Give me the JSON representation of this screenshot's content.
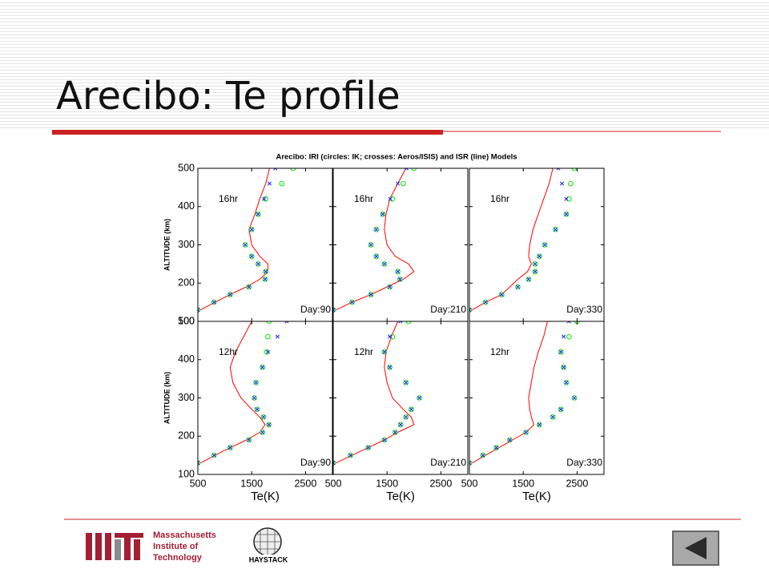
{
  "slide": {
    "title": "Arecibo: Te profile"
  },
  "figure": {
    "title": "Arecibo: IRI (circles: IK; crosses: Aeros/ISIS) and ISR (line) Models"
  },
  "footer": {
    "logo_lines": [
      "Massachusetts",
      "Institute of",
      "Technology"
    ],
    "haystack": "HAYSTACK"
  },
  "chart_data": [
    {
      "type": "line",
      "hour": "16hr",
      "day": "Day:90",
      "ylabel": "ALTITUDE (km)",
      "ytick_labels": true,
      "xtick_labels": false,
      "xlim": [
        500,
        3000
      ],
      "xticks": [
        500,
        1500,
        2500
      ],
      "ylim": [
        100,
        500
      ],
      "yticks": [
        100,
        200,
        300,
        400,
        500
      ],
      "altitude": [
        130,
        150,
        170,
        190,
        210,
        230,
        250,
        270,
        300,
        340,
        380,
        420,
        460,
        500
      ],
      "series": [
        {
          "color": "#ff0000",
          "values": [
            550,
            820,
            1100,
            1400,
            1650,
            1800,
            1800,
            1650,
            1500,
            1450,
            1560,
            1650,
            1760,
            1830
          ]
        },
        {
          "color": "#22ee22",
          "marker": "circle",
          "values": [
            500,
            800,
            1100,
            1450,
            1750,
            1760,
            1620,
            1500,
            1380,
            1500,
            1620,
            1760,
            2060,
            2270
          ]
        },
        {
          "color": "#1a1aff",
          "marker": "cross",
          "values": [
            500,
            800,
            1100,
            1450,
            1750,
            1760,
            1620,
            1500,
            1380,
            1500,
            1620,
            1730,
            1830,
            1940
          ]
        }
      ]
    },
    {
      "type": "line",
      "hour": "16hr",
      "day": "Day:210",
      "ytick_labels": false,
      "xtick_labels": false,
      "xlim": [
        500,
        3000
      ],
      "xticks": [
        500,
        1500,
        2500
      ],
      "ylim": [
        100,
        500
      ],
      "yticks": [
        100,
        200,
        300,
        400,
        500
      ],
      "altitude": [
        130,
        150,
        170,
        190,
        210,
        230,
        250,
        270,
        300,
        340,
        380,
        420,
        460,
        500
      ],
      "series": [
        {
          "color": "#ff0000",
          "values": [
            550,
            850,
            1200,
            1500,
            1800,
            2000,
            1900,
            1650,
            1500,
            1450,
            1480,
            1550,
            1700,
            1850
          ]
        },
        {
          "color": "#22ee22",
          "marker": "circle",
          "values": [
            500,
            850,
            1200,
            1550,
            1740,
            1700,
            1450,
            1300,
            1200,
            1300,
            1420,
            1600,
            1800,
            2000
          ]
        },
        {
          "color": "#1a1aff",
          "marker": "cross",
          "values": [
            500,
            850,
            1200,
            1550,
            1740,
            1700,
            1450,
            1300,
            1200,
            1300,
            1420,
            1560,
            1700,
            1860
          ]
        }
      ]
    },
    {
      "type": "line",
      "hour": "16hr",
      "day": "Day:330",
      "ytick_labels": false,
      "xtick_labels": false,
      "xlim": [
        500,
        3000
      ],
      "xticks": [
        500,
        1500,
        2500
      ],
      "ylim": [
        100,
        500
      ],
      "yticks": [
        100,
        200,
        300,
        400,
        500
      ],
      "altitude": [
        130,
        150,
        170,
        190,
        210,
        230,
        250,
        270,
        300,
        340,
        380,
        420,
        460,
        500
      ],
      "series": [
        {
          "color": "#ff0000",
          "values": [
            550,
            800,
            1100,
            1250,
            1400,
            1580,
            1650,
            1600,
            1620,
            1680,
            1780,
            1880,
            1980,
            2050
          ]
        },
        {
          "color": "#22ee22",
          "marker": "circle",
          "values": [
            500,
            800,
            1100,
            1400,
            1600,
            1720,
            1720,
            1800,
            1900,
            2100,
            2300,
            2350,
            2380,
            2450
          ]
        },
        {
          "color": "#1a1aff",
          "marker": "cross",
          "values": [
            500,
            800,
            1100,
            1400,
            1600,
            1720,
            1720,
            1800,
            1900,
            2100,
            2300,
            2300,
            2220,
            2150
          ]
        }
      ]
    },
    {
      "type": "line",
      "hour": "12hr",
      "day": "Day:90",
      "ylabel": "ALTITUDE (km)",
      "xlabel": "Te(K)",
      "ytick_labels": true,
      "xtick_labels": true,
      "xlim": [
        500,
        3000
      ],
      "xticks": [
        500,
        1500,
        2500
      ],
      "ylim": [
        100,
        500
      ],
      "yticks": [
        100,
        200,
        300,
        400,
        500
      ],
      "altitude": [
        130,
        150,
        170,
        190,
        210,
        230,
        250,
        270,
        300,
        340,
        380,
        420,
        460,
        500
      ],
      "series": [
        {
          "color": "#ff0000",
          "values": [
            550,
            820,
            1100,
            1400,
            1650,
            1750,
            1650,
            1500,
            1300,
            1150,
            1100,
            1200,
            1350,
            1500
          ]
        },
        {
          "color": "#22ee22",
          "marker": "circle",
          "values": [
            500,
            800,
            1100,
            1450,
            1700,
            1820,
            1720,
            1600,
            1550,
            1580,
            1700,
            1780,
            1800,
            1820
          ]
        },
        {
          "color": "#1a1aff",
          "marker": "cross",
          "values": [
            500,
            800,
            1100,
            1450,
            1700,
            1820,
            1720,
            1600,
            1550,
            1580,
            1700,
            1800,
            1980,
            2150
          ]
        }
      ]
    },
    {
      "type": "line",
      "hour": "12hr",
      "day": "Day:210",
      "xlabel": "Te(K)",
      "ytick_labels": false,
      "xtick_labels": true,
      "xlim": [
        500,
        3000
      ],
      "xticks": [
        500,
        1500,
        2500
      ],
      "ylim": [
        100,
        500
      ],
      "yticks": [
        100,
        200,
        300,
        400,
        500
      ],
      "altitude": [
        130,
        150,
        170,
        190,
        210,
        230,
        250,
        270,
        300,
        340,
        380,
        420,
        460,
        500
      ],
      "series": [
        {
          "color": "#ff0000",
          "values": [
            550,
            850,
            1150,
            1450,
            1700,
            2000,
            1950,
            1800,
            1600,
            1500,
            1450,
            1480,
            1580,
            1700
          ]
        },
        {
          "color": "#22ee22",
          "marker": "circle",
          "values": [
            500,
            820,
            1150,
            1450,
            1650,
            1750,
            1850,
            1950,
            2100,
            1850,
            1550,
            1450,
            1600,
            1900
          ]
        },
        {
          "color": "#1a1aff",
          "marker": "cross",
          "values": [
            500,
            820,
            1150,
            1450,
            1650,
            1750,
            1850,
            1950,
            2100,
            1850,
            1550,
            1450,
            1550,
            1750
          ]
        }
      ]
    },
    {
      "type": "line",
      "hour": "12hr",
      "day": "Day:330",
      "xlabel": "Te(K)",
      "ytick_labels": false,
      "xtick_labels": true,
      "xlim": [
        500,
        3000
      ],
      "xticks": [
        500,
        1500,
        2500
      ],
      "ylim": [
        100,
        500
      ],
      "yticks": [
        100,
        200,
        300,
        400,
        500
      ],
      "altitude": [
        130,
        150,
        170,
        190,
        210,
        230,
        250,
        270,
        300,
        340,
        380,
        420,
        460,
        500
      ],
      "series": [
        {
          "color": "#ff0000",
          "values": [
            550,
            800,
            1050,
            1300,
            1550,
            1700,
            1650,
            1620,
            1600,
            1650,
            1700,
            1780,
            1880,
            1950
          ]
        },
        {
          "color": "#22ee22",
          "marker": "circle",
          "values": [
            500,
            750,
            1000,
            1250,
            1550,
            1800,
            2050,
            2200,
            2450,
            2300,
            2250,
            2200,
            2350,
            2500
          ]
        },
        {
          "color": "#1a1aff",
          "marker": "cross",
          "values": [
            500,
            750,
            1000,
            1250,
            1550,
            1800,
            2050,
            2200,
            2450,
            2300,
            2250,
            2200,
            2250,
            2350
          ]
        }
      ]
    }
  ]
}
